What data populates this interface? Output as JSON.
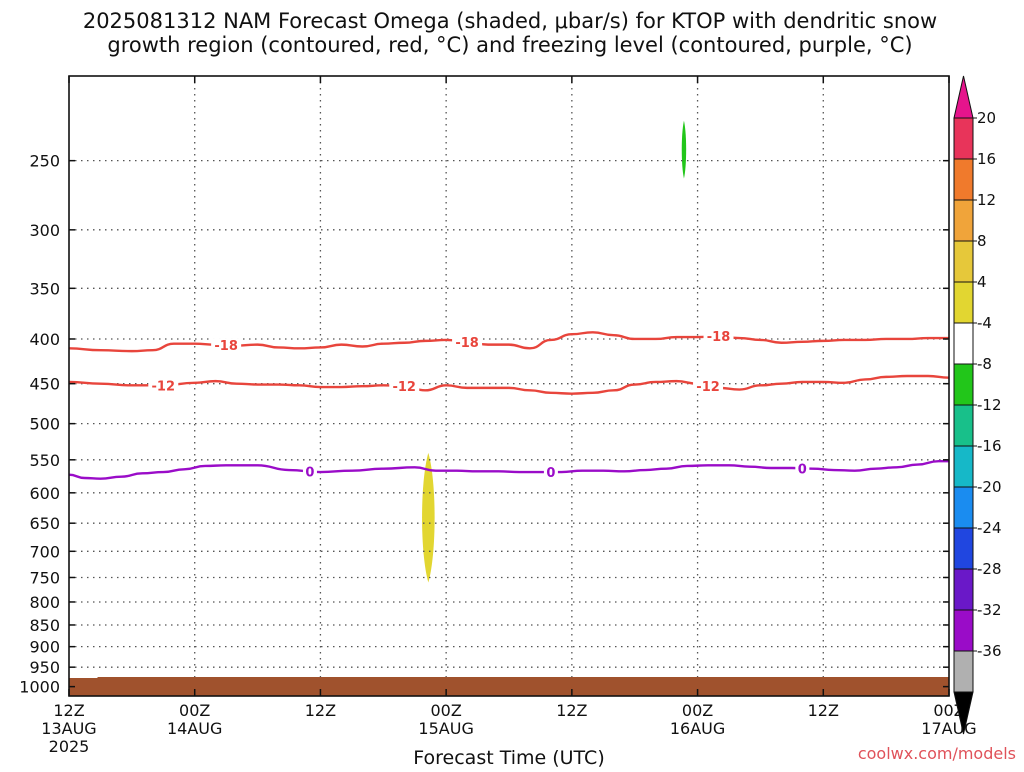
{
  "title_lines": [
    "2025081312 NAM Forecast Omega (shaded, μbar/s) for KTOP with dendritic snow",
    "growth region (contoured, red, °C) and freezing level (contoured, purple, °C)"
  ],
  "credit": "coolwx.com/models",
  "chart_data": {
    "type": "time-height cross section",
    "title": "2025081312 NAM Forecast Omega (shaded, μbar/s) for KTOP with dendritic snow growth region (contoured, red, °C) and freezing level (contoured, purple, °C)",
    "xlabel": "Forecast Time (UTC)",
    "ylabel": "",
    "xlim_hours": [
      0,
      84
    ],
    "ylim_hPa": [
      1025,
      200
    ],
    "y_scale": "log",
    "grid": true,
    "x_ticks": [
      {
        "hour": 0,
        "lines": [
          "12Z",
          "13AUG",
          "2025"
        ]
      },
      {
        "hour": 12,
        "lines": [
          "00Z",
          "14AUG"
        ]
      },
      {
        "hour": 24,
        "lines": [
          "12Z"
        ]
      },
      {
        "hour": 36,
        "lines": [
          "00Z",
          "15AUG"
        ]
      },
      {
        "hour": 48,
        "lines": [
          "12Z"
        ]
      },
      {
        "hour": 60,
        "lines": [
          "00Z",
          "16AUG"
        ]
      },
      {
        "hour": 72,
        "lines": [
          "12Z"
        ]
      },
      {
        "hour": 84,
        "lines": [
          "00Z",
          "17AUG"
        ]
      }
    ],
    "y_ticks": [
      250,
      300,
      350,
      400,
      450,
      500,
      550,
      600,
      650,
      700,
      750,
      800,
      850,
      900,
      950,
      1000
    ],
    "contours": [
      {
        "name": "-18",
        "color": "#e8453c",
        "label": "-18",
        "hours": [
          0,
          3,
          6,
          8,
          10,
          12,
          14,
          16,
          18,
          20,
          22,
          24,
          26,
          28,
          30,
          32,
          34,
          36,
          38,
          40,
          42,
          44,
          46,
          48,
          50,
          52,
          54,
          56,
          58,
          60,
          62,
          64,
          66,
          68,
          70,
          72,
          74,
          76,
          78,
          80,
          82,
          84
        ],
        "pressure": [
          410,
          412,
          413,
          412,
          405,
          405,
          406,
          407,
          406,
          409,
          410,
          409,
          406,
          408,
          405,
          404,
          402,
          401,
          403,
          406,
          406,
          410,
          401,
          395,
          393,
          396,
          400,
          400,
          398,
          398,
          397,
          399,
          401,
          404,
          403,
          402,
          401,
          401,
          400,
          400,
          399,
          399
        ],
        "label_hours": [
          15,
          38,
          62
        ]
      },
      {
        "name": "-12",
        "color": "#e8453c",
        "label": "-12",
        "hours": [
          0,
          3,
          6,
          9,
          12,
          14,
          16,
          18,
          20,
          22,
          24,
          26,
          28,
          30,
          32,
          34,
          36,
          38,
          40,
          42,
          44,
          46,
          48,
          50,
          52,
          54,
          56,
          58,
          60,
          62,
          64,
          66,
          68,
          70,
          72,
          74,
          76,
          78,
          80,
          82,
          84
        ],
        "pressure": [
          448,
          450,
          452,
          452,
          449,
          447,
          450,
          451,
          451,
          452,
          454,
          454,
          453,
          452,
          453,
          458,
          452,
          455,
          455,
          455,
          458,
          461,
          462,
          461,
          458,
          451,
          448,
          447,
          450,
          455,
          457,
          452,
          450,
          448,
          448,
          449,
          445,
          442,
          441,
          441,
          443
        ],
        "label_hours": [
          9,
          32,
          61
        ]
      },
      {
        "name": "0",
        "color": "#9a0cc8",
        "label": "0",
        "hours": [
          0,
          1.5,
          3,
          5,
          7,
          9,
          11,
          13,
          15,
          18,
          21,
          24,
          27,
          30,
          33,
          35,
          37,
          39,
          41,
          43,
          45,
          47,
          49,
          51,
          53,
          55,
          57,
          59,
          61,
          63,
          65,
          67,
          69,
          71,
          73,
          75,
          77,
          79,
          81,
          83,
          84
        ],
        "pressure": [
          572,
          577,
          578,
          575,
          570,
          568,
          564,
          559,
          558,
          558,
          565,
          568,
          566,
          563,
          561,
          566,
          566,
          567,
          567,
          568,
          568,
          568,
          566,
          566,
          567,
          565,
          563,
          559,
          558,
          558,
          560,
          562,
          562,
          563,
          565,
          566,
          563,
          561,
          557,
          552,
          552
        ],
        "label_hours": [
          23,
          46,
          70
        ]
      }
    ],
    "shaded_areas": [
      {
        "name": "omega-positive-region",
        "value_range": [
          4,
          8
        ],
        "color": "#e2d631",
        "center_hour": 34.3,
        "hour_halfwidth": 0.8,
        "pressure_range": [
          540,
          760
        ]
      },
      {
        "name": "omega-negative-region",
        "value_range": [
          -8,
          -4
        ],
        "color": "#22c61a",
        "center_hour": 58.7,
        "hour_halfwidth": 0.28,
        "pressure_range": [
          225,
          262
        ]
      }
    ],
    "terrain": {
      "color": "#a0522d",
      "top_pressure": 975
    },
    "colorbar": {
      "labels": [
        "20",
        "16",
        "12",
        "8",
        "4",
        "-4",
        "-8",
        "-12",
        "-16",
        "-20",
        "-24",
        "-28",
        "-32",
        "-36"
      ],
      "colors": [
        "#e8345a",
        "#f07a2c",
        "#f0a43a",
        "#e6c83a",
        "#e2d631",
        "#ffffff",
        "#22c61a",
        "#18c08a",
        "#16b8c8",
        "#1a8cf0",
        "#2046e0",
        "#6a18c8",
        "#9a0cc8",
        "#b0b0b0"
      ],
      "top_arrow_color": "#e6148c",
      "bottom_arrow_color": "#000000"
    }
  }
}
